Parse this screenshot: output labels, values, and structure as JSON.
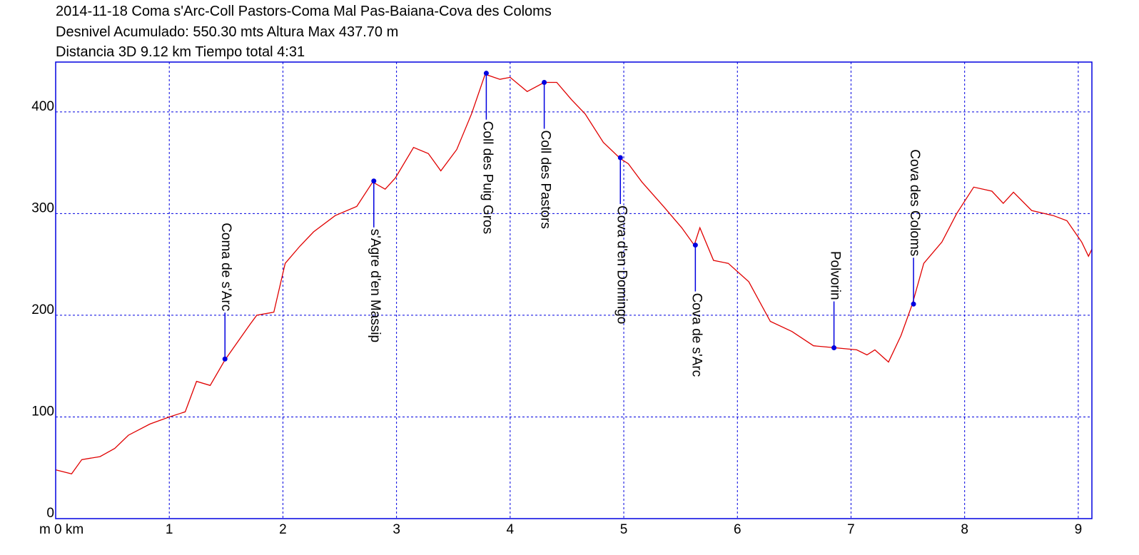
{
  "chart_data": {
    "type": "line",
    "title": "2014-11-18 Coma s'Arc-Coll Pastors-Coma Mal Pas-Baiana-Cova des Coloms",
    "subtitle": [
      "Desnivel Acumulado: 550.30 mts  Altura Max 437.70 m",
      "Distancia 3D 9.12 km  Tiempo total 4:31"
    ],
    "y_unit": "m",
    "xlim": [
      0,
      9.12
    ],
    "ylim": [
      0,
      449
    ],
    "xticks": [
      {
        "value": 0,
        "label": "0 km"
      },
      1,
      2,
      3,
      4,
      5,
      6,
      7,
      8,
      9
    ],
    "yticks": [
      0,
      100,
      200,
      300,
      400
    ],
    "grid": true,
    "grid_color": "#0000e0",
    "frame_color": "#0000e0",
    "series": [
      {
        "color": "#e00000",
        "x": [
          0,
          0.14,
          0.23,
          0.39,
          0.52,
          0.64,
          0.83,
          1.0,
          1.14,
          1.24,
          1.36,
          1.49,
          1.71,
          1.77,
          1.92,
          2.02,
          2.15,
          2.27,
          2.46,
          2.65,
          2.79,
          2.9,
          2.99,
          3.15,
          3.28,
          3.39,
          3.53,
          3.66,
          3.78,
          3.91,
          4.0,
          4.15,
          4.3,
          4.41,
          4.54,
          4.66,
          4.82,
          4.97,
          5.04,
          5.16,
          5.35,
          5.51,
          5.62,
          5.67,
          5.79,
          5.92,
          6.1,
          6.29,
          6.48,
          6.67,
          6.86,
          7.05,
          7.14,
          7.21,
          7.33,
          7.44,
          7.54,
          7.64,
          7.8,
          7.93,
          8.08,
          8.24,
          8.34,
          8.43,
          8.59,
          8.78,
          8.9,
          9.03,
          9.09,
          9.12
        ],
        "y": [
          48,
          44,
          58,
          61,
          69,
          82,
          93,
          100,
          105,
          135,
          131,
          156,
          191,
          200,
          203,
          251,
          268,
          282,
          298,
          307,
          331,
          324,
          335,
          365,
          359,
          342,
          363,
          398,
          437,
          432,
          434,
          420,
          429,
          429,
          412,
          398,
          370,
          354,
          349,
          331,
          307,
          286,
          269,
          286,
          254,
          251,
          233,
          194,
          184,
          170,
          168,
          166,
          161,
          166,
          154,
          180,
          211,
          251,
          272,
          300,
          326,
          322,
          310,
          321,
          303,
          298,
          293,
          272,
          258,
          265
        ]
      }
    ],
    "waypoint_color": "#0000e0",
    "waypoints": [
      {
        "label": "Coma de s'Arc",
        "x": 1.49,
        "y": 157,
        "label_position": "above"
      },
      {
        "label": "s'Agre d'en Massip",
        "x": 2.8,
        "y": 332,
        "label_position": "below"
      },
      {
        "label": "Coll des Puig Gros",
        "x": 3.79,
        "y": 438,
        "label_position": "below"
      },
      {
        "label": "Coll des Pastors",
        "x": 4.3,
        "y": 429,
        "label_position": "below"
      },
      {
        "label": "Cova d'en Domingo",
        "x": 4.97,
        "y": 355,
        "label_position": "below"
      },
      {
        "label": "Cova de s'Arc",
        "x": 5.63,
        "y": 269,
        "label_position": "below"
      },
      {
        "label": "Polvorin",
        "x": 6.85,
        "y": 168,
        "label_position": "above"
      },
      {
        "label": "Cova des Coloms",
        "x": 7.55,
        "y": 211,
        "label_position": "above"
      }
    ]
  }
}
